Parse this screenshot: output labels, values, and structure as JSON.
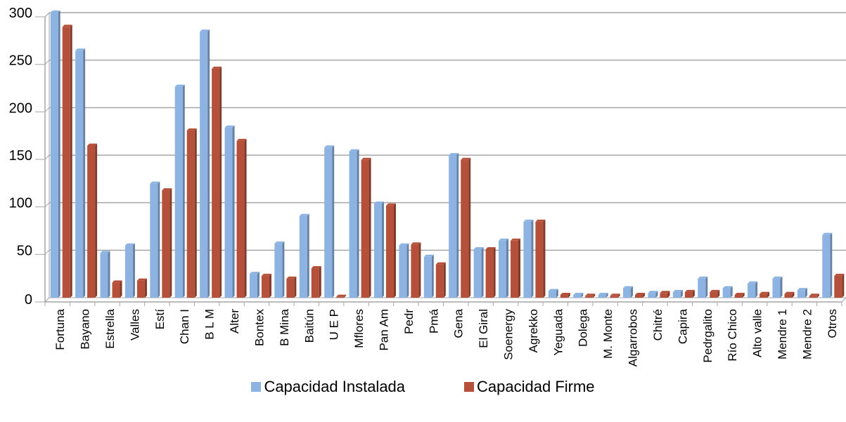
{
  "chart_data": {
    "type": "bar",
    "title": "",
    "xlabel": "",
    "ylabel": "",
    "ylim": [
      0,
      300
    ],
    "yticks": [
      0,
      50,
      100,
      150,
      200,
      250,
      300
    ],
    "grid": true,
    "legend_position": "bottom",
    "categories": [
      "Fortuna",
      "Bayano",
      "Estrella",
      "Valles",
      "Estí",
      "Chan I",
      "B L M",
      "Alter",
      "Bontex",
      "B Mina",
      "Baitún",
      "U E P",
      "Mflores",
      "Pan Am",
      "Pedr",
      "Pmá",
      "Gena",
      "El Giral",
      "Soenergy",
      "Agrekko",
      "Yeguada",
      "Dolega",
      "M. Monte",
      "Algarrobos",
      "Chitré",
      "Capira",
      "Pedrgalito",
      "Río Chico",
      "Alto valle",
      "Mendre 1",
      "Mendre 2",
      "Otros"
    ],
    "series": [
      {
        "name": "Capacidad Instalada",
        "color": "#8DB3E2",
        "values": [
          300,
          260,
          47,
          55,
          120,
          222,
          280,
          179,
          25,
          57,
          86,
          158,
          154,
          99,
          55,
          43,
          150,
          51,
          60,
          80,
          7,
          3,
          3,
          10,
          5,
          6,
          20,
          10,
          15,
          20,
          8,
          66
        ]
      },
      {
        "name": "Capacidad Firme",
        "color": "#B5503B",
        "values": [
          285,
          160,
          16,
          18,
          113,
          176,
          241,
          165,
          23,
          20,
          31,
          1,
          145,
          97,
          56,
          35,
          145,
          51,
          60,
          80,
          3,
          2,
          2,
          3,
          5,
          6,
          6,
          3,
          4,
          4,
          2,
          23
        ]
      }
    ]
  }
}
